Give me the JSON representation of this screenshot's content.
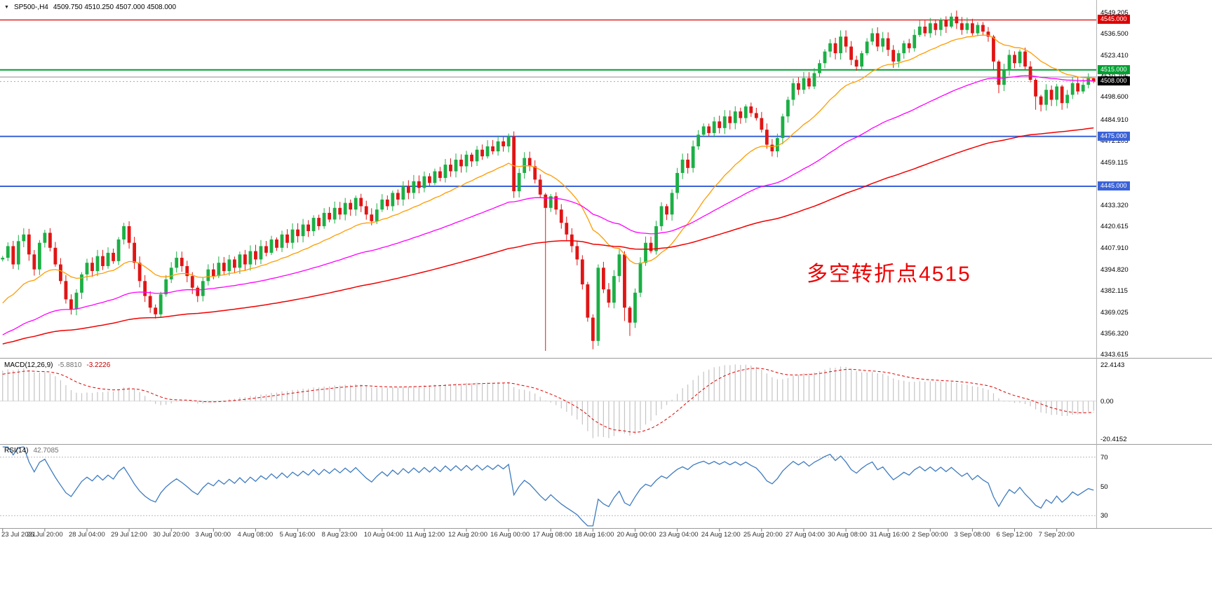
{
  "header": {
    "dropdown_icon": "▼",
    "symbol": "SP500-,H4",
    "ohlc": "4509.750 4510.250 4507.000 4508.000"
  },
  "annotation": {
    "text": "多空转折点4515",
    "color": "#ee0000"
  },
  "price_axis": {
    "labels": [
      "4549.205",
      "4536.500",
      "4523.410",
      "4510.705",
      "4498.600",
      "4484.910",
      "4472.205",
      "4459.115",
      "4433.320",
      "4420.615",
      "4407.910",
      "4394.820",
      "4382.115",
      "4369.025",
      "4356.320",
      "4343.615"
    ],
    "badges": [
      {
        "text": "4545.000",
        "price": 4545.0,
        "bg": "#dd0000"
      },
      {
        "text": "4515.000",
        "price": 4515.0,
        "bg": "#00a032"
      },
      {
        "text": "4508.000",
        "price": 4508.0,
        "bg": "#000000"
      },
      {
        "text": "4475.000",
        "price": 4475.0,
        "bg": "#3a62d8"
      },
      {
        "text": "4445.000",
        "price": 4445.0,
        "bg": "#3a62d8"
      }
    ]
  },
  "hlines": [
    {
      "price": 4545.0,
      "color": "#dd0000",
      "width": 1.2
    },
    {
      "price": 4515.0,
      "color": "#00a032",
      "width": 2
    },
    {
      "price": 4510.7,
      "color": "#8c8c8c",
      "width": 1
    },
    {
      "price": 4475.0,
      "color": "#3a62d8",
      "width": 2
    },
    {
      "price": 4445.0,
      "color": "#3a62d8",
      "width": 2
    }
  ],
  "overlays": [
    {
      "name": "ma-fast",
      "period": 20,
      "color": "#ff9c00",
      "width": 1.3
    },
    {
      "name": "ma-mid",
      "period": 60,
      "color": "#ff00ff",
      "width": 1.3,
      "seed": 4338
    },
    {
      "name": "ma-slow",
      "period": 140,
      "color": "#f00000",
      "width": 1.5,
      "seed": 4344
    }
  ],
  "candle_colors": {
    "up": "#1caf45",
    "down": "#e01515"
  },
  "macd_panel": {
    "title": "MACD(12,26,9)",
    "main_value": "-5.8810",
    "signal_value": "-3.2226",
    "axis_labels": [
      "22.4143",
      "0.00",
      "-20.4152"
    ],
    "fast": 12,
    "slow": 26,
    "signal": 9,
    "histogram_color": "#c4c4c4",
    "signal_color": "#e00000"
  },
  "rsi_panel": {
    "title": "RSI(14)",
    "value": "42.7085",
    "period": 14,
    "levels": [
      70,
      50,
      30
    ],
    "line_color": "#3e7bbf",
    "scale": [
      22,
      78
    ]
  },
  "time_axis": {
    "bars_per_label": 8,
    "labels": [
      "23 Jul 2021",
      "26 Jul 20:00",
      "28 Jul 04:00",
      "29 Jul 12:00",
      "30 Jul 20:00",
      "3 Aug 00:00",
      "4 Aug 08:00",
      "5 Aug 16:00",
      "8 Aug 23:00",
      "10 Aug 04:00",
      "11 Aug 12:00",
      "12 Aug 20:00",
      "16 Aug 00:00",
      "17 Aug 08:00",
      "18 Aug 16:00",
      "20 Aug 00:00",
      "23 Aug 04:00",
      "24 Aug 12:00",
      "25 Aug 20:00",
      "27 Aug 04:00",
      "30 Aug 08:00",
      "31 Aug 16:00",
      "2 Sep 00:00",
      "3 Sep 08:00",
      "6 Sep 12:00",
      "7 Sep 20:00"
    ]
  },
  "chart_data": {
    "type": "candlestick",
    "symbol": "SP500-",
    "timeframe": "H4",
    "y_range": [
      4341.8,
      4557.0
    ],
    "last_candle": {
      "open": 4509.75,
      "high": 4510.25,
      "low": 4507.0,
      "close": 4508.0
    },
    "warmup_closes": [
      4318,
      4322,
      4320,
      4326,
      4331,
      4328,
      4334,
      4339,
      4336,
      4342,
      4347,
      4344,
      4350,
      4355,
      4352,
      4358,
      4363,
      4360,
      4366,
      4371,
      4368,
      4374,
      4379,
      4376,
      4382,
      4387,
      4384,
      4390,
      4396,
      4401
    ],
    "closes": [
      4402,
      4409,
      4398,
      4412,
      4416,
      4404,
      4395,
      4411,
      4417,
      4408,
      4398,
      4388,
      4377,
      4371,
      4381,
      4392,
      4399,
      4394,
      4403,
      4397,
      4405,
      4400,
      4413,
      4421,
      4411,
      4399,
      4388,
      4379,
      4372,
      4368,
      4380,
      4389,
      4396,
      4402,
      4397,
      4391,
      4384,
      4379,
      4388,
      4395,
      4391,
      4399,
      4394,
      4401,
      4396,
      4404,
      4398,
      4406,
      4401,
      4409,
      4405,
      4413,
      4408,
      4416,
      4411,
      4419,
      4415,
      4422,
      4418,
      4426,
      4421,
      4429,
      4425,
      4432,
      4428,
      4435,
      4431,
      4438,
      4433,
      4428,
      4424,
      4431,
      4437,
      4433,
      4441,
      4437,
      4445,
      4441,
      4448,
      4444,
      4451,
      4447,
      4454,
      4450,
      4458,
      4454,
      4461,
      4457,
      4464,
      4460,
      4467,
      4463,
      4469,
      4466,
      4472,
      4469,
      4475,
      4442,
      4453,
      4462,
      4457,
      4449,
      4440,
      4432,
      4439,
      4431,
      4423,
      4416,
      4409,
      4401,
      4386,
      4366,
      4352,
      4396,
      4383,
      4375,
      4391,
      4404,
      4372,
      4363,
      4381,
      4399,
      4411,
      4406,
      4421,
      4433,
      4428,
      4441,
      4453,
      4461,
      4456,
      4469,
      4476,
      4481,
      4477,
      4484,
      4480,
      4487,
      4483,
      4490,
      4486,
      4493,
      4489,
      4486,
      4479,
      4470,
      4466,
      4474,
      4487,
      4497,
      4507,
      4503,
      4510,
      4505,
      4513,
      4519,
      4526,
      4531,
      4525,
      4535,
      4529,
      4521,
      4517,
      4525,
      4532,
      4537,
      4529,
      4534,
      4527,
      4520,
      4525,
      4531,
      4528,
      4536,
      4541,
      4537,
      4543,
      4539,
      4545,
      4541,
      4547,
      4543,
      4539,
      4543,
      4537,
      4542,
      4538,
      4535,
      4520,
      4506,
      4515,
      4524,
      4519,
      4526,
      4517,
      4509,
      4499,
      4494,
      4503,
      4497,
      4505,
      4495,
      4500,
      4507,
      4502,
      4506,
      4510,
      4508
    ],
    "wick_overrides": {
      "97": [
        4478,
        4438
      ],
      "103": [
        4441,
        4346
      ],
      "112": [
        4368,
        4347
      ],
      "113": [
        4398,
        4349
      ],
      "118": [
        4406,
        4364
      ],
      "119": [
        4373,
        4355
      ],
      "180": [
        4549.2,
        4540
      ],
      "188": [
        4536,
        4515
      ],
      "189": [
        4521,
        4501
      ],
      "196": [
        4510,
        4491
      ],
      "197": [
        4500,
        4490
      ],
      "201": [
        4506,
        4491
      ],
      "207": [
        4510.25,
        4507
      ]
    }
  }
}
